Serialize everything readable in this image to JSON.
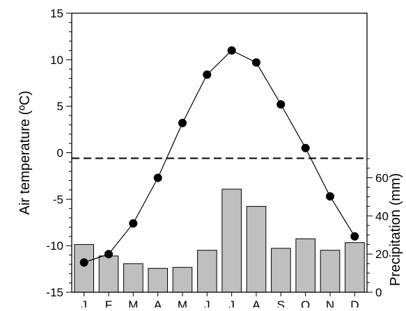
{
  "chart_data": {
    "type": "bar+line",
    "categories": [
      "J",
      "F",
      "M",
      "A",
      "M",
      "J",
      "J",
      "A",
      "S",
      "O",
      "N",
      "D"
    ],
    "left_axis": {
      "label": "Air temperature (ºC)",
      "lim": [
        -15,
        15
      ],
      "ticks": [
        15,
        10,
        5,
        0,
        -5,
        -10,
        -15
      ],
      "tick_labels": [
        "15",
        "10",
        "5",
        "0",
        "-5",
        "-10",
        "-15"
      ]
    },
    "right_axis": {
      "label": "Precipitation (mm)",
      "lim": [
        0,
        70
      ],
      "ticks": [
        60,
        40,
        20,
        0
      ],
      "tick_labels": [
        "60",
        "40",
        "20",
        "0"
      ]
    },
    "series": [
      {
        "type": "line",
        "axis": "left",
        "values": [
          -11.8,
          -10.9,
          -7.6,
          -2.7,
          3.2,
          8.4,
          11.0,
          9.7,
          5.2,
          0.5,
          -4.7,
          -9.0
        ]
      },
      {
        "type": "bar",
        "axis": "right",
        "values": [
          25.0,
          19.0,
          15.0,
          12.5,
          13.0,
          22.0,
          54.0,
          45.0,
          23.0,
          28.0,
          22.0,
          26.0
        ]
      }
    ],
    "reference_line": {
      "axis": "left",
      "value": -0.6,
      "style": "dashed"
    },
    "grid": false,
    "legend": "none",
    "colors": {
      "bar_fill": "#bfbfbf",
      "bar_stroke": "#000000",
      "line": "#000000",
      "marker": "#000000"
    }
  }
}
